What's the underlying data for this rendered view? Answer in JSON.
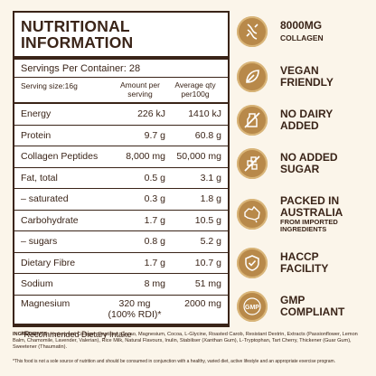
{
  "panel": {
    "title_line1": "NUTRITIONAL",
    "title_line2": "INFORMATION",
    "servings": "Servings Per Container: 28",
    "col_label": "Serving size:16g",
    "col_amount_line1": "Amount per",
    "col_amount_line2": "serving",
    "col_avg_line1": "Average qty",
    "col_avg_line2": "per100g",
    "rows": [
      {
        "name": "Energy",
        "serving": "226 kJ",
        "per100": "1410 kJ"
      },
      {
        "name": "Protein",
        "serving": "9.7 g",
        "per100": "60.8 g"
      },
      {
        "name": "Collagen Peptides",
        "serving": "8,000 mg",
        "per100": "50,000 mg"
      },
      {
        "name": "Fat, total",
        "serving": "0.5 g",
        "per100": "3.1 g"
      },
      {
        "name": "– saturated",
        "serving": "0.3 g",
        "per100": "1.8 g"
      },
      {
        "name": "Carbohydrate",
        "serving": "1.7 g",
        "per100": "10.5 g"
      },
      {
        "name": "– sugars",
        "serving": "0.8 g",
        "per100": "5.2 g"
      },
      {
        "name": "Dietary Fibre",
        "serving": "1.7 g",
        "per100": "10.7 g"
      },
      {
        "name": "Sodium",
        "serving": "8 mg",
        "per100": "51 mg"
      }
    ],
    "magnesium": {
      "name": "Magnesium",
      "serving_line1": "320 mg",
      "serving_line2": "(100% RDI)*",
      "per100": "2000 mg"
    },
    "note": "*Recommended Dietary Intake"
  },
  "ingredients": {
    "label": "INGREDIENTS:",
    "text": "Hydrolysed Collagen Peptides, Cacao, Magnesium, Cocoa, L-Glycine, Roasted Carob, Resistant Dextrin, Extracts (Passionflower, Lemon Balm, Chamomile, Lavender, Valerian), Rice Milk, Natural Flavours, Inulin, Stabiliser (Xanthan Gum), L-Tryptophan, Tart Cherry, Thickener (Guar Gum), Sweetener (Thaumatin)."
  },
  "disclaimer": "*This food is not a sole source of nutrition and should be consumed in conjunction with a healthy, varied diet, active lifestyle and an appropriate exercise program.",
  "claims": [
    {
      "line1": "8000MG",
      "line2": "COLLAGEN",
      "sub": "",
      "icon": "collagen-icon"
    },
    {
      "line1": "VEGAN",
      "line2": "FRIENDLY",
      "sub": "",
      "icon": "leaf-icon"
    },
    {
      "line1": "NO DAIRY",
      "line2": "ADDED",
      "sub": "",
      "icon": "no-dairy-icon"
    },
    {
      "line1": "NO ADDED",
      "line2": "SUGAR",
      "sub": "",
      "icon": "no-sugar-icon"
    },
    {
      "line1": "PACKED IN",
      "line2": "AUSTRALIA",
      "sub": "FROM IMPORTED INGREDIENTS",
      "icon": "australia-icon"
    },
    {
      "line1": "HACCP",
      "line2": "FACILITY",
      "sub": "",
      "icon": "shield-check-icon"
    },
    {
      "line1": "GMP",
      "line2": "COMPLIANT",
      "sub": "",
      "icon": "gmp-icon"
    }
  ],
  "colors": {
    "badge": "#b8894a",
    "text": "#3a2418",
    "background": "#fbf5ea"
  }
}
